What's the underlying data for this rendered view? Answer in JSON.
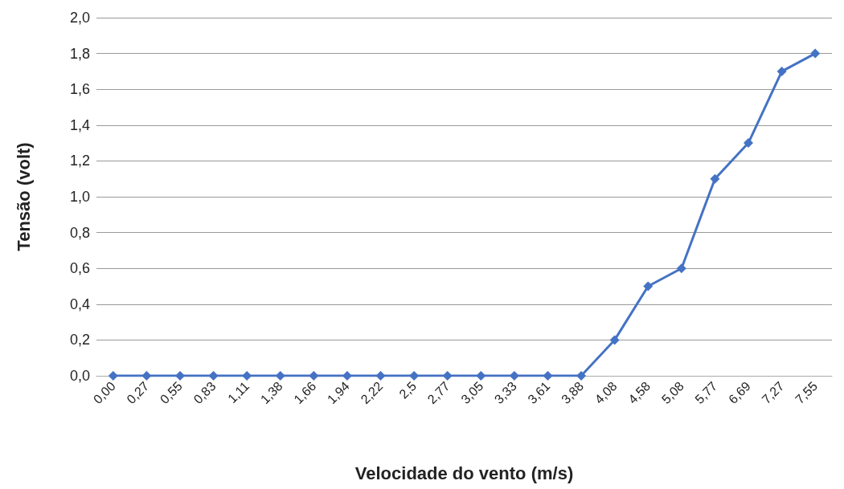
{
  "chart_data": {
    "type": "line",
    "xlabel": "Velocidade do vento (m/s)",
    "ylabel": "Tensão (volt)",
    "categories": [
      "0,00",
      "0,27",
      "0,55",
      "0,83",
      "1,11",
      "1,38",
      "1,66",
      "1,94",
      "2,22",
      "2,5",
      "2,77",
      "3,05",
      "3,33",
      "3,61",
      "3,88",
      "4,08",
      "4,58",
      "5,08",
      "5,77",
      "6,69",
      "7,27",
      "7,55"
    ],
    "series": [
      {
        "color": "#4472c4",
        "values": [
          0,
          0,
          0,
          0,
          0,
          0,
          0,
          0,
          0,
          0,
          0,
          0,
          0,
          0,
          0,
          0.2,
          0.5,
          0.6,
          1.1,
          1.3,
          1.7,
          1.8
        ]
      }
    ],
    "ylim": [
      0,
      2
    ],
    "yticks": [
      {
        "value": 0,
        "label": "0,0"
      },
      {
        "value": 0.2,
        "label": "0,2"
      },
      {
        "value": 0.4,
        "label": "0,4"
      },
      {
        "value": 0.6,
        "label": "0,6"
      },
      {
        "value": 0.8,
        "label": "0,8"
      },
      {
        "value": 1,
        "label": "1,0"
      },
      {
        "value": 1.2,
        "label": "1,2"
      },
      {
        "value": 1.4,
        "label": "1,4"
      },
      {
        "value": 1.6,
        "label": "1,6"
      },
      {
        "value": 1.8,
        "label": "1,8"
      },
      {
        "value": 2,
        "label": "2,0"
      }
    ],
    "grid": "y",
    "marker": "diamond",
    "line_style": "solid"
  }
}
